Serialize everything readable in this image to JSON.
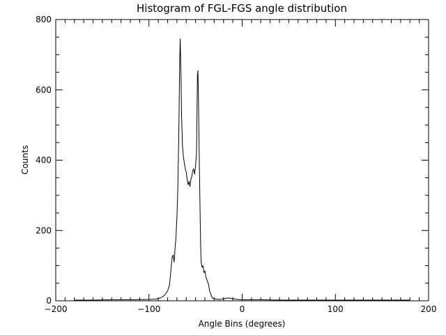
{
  "chart_data": {
    "type": "line",
    "title": "Histogram of FGL-FGS angle distribution",
    "xlabel": "Angle Bins (degrees)",
    "ylabel": "Counts",
    "xlim": [
      -200,
      200
    ],
    "ylim": [
      0,
      800
    ],
    "xticks": [
      -200,
      -100,
      0,
      100,
      200
    ],
    "xtick_labels": [
      "−200",
      "−100",
      "0",
      "100",
      "200"
    ],
    "yticks": [
      0,
      200,
      400,
      600,
      800
    ],
    "ytick_labels": [
      "0",
      "200",
      "400",
      "600",
      "800"
    ],
    "grid": false,
    "series": [
      {
        "color": "#000000",
        "x": [
          -180,
          -160,
          -140,
          -120,
          -100,
          -92,
          -88,
          -84,
          -82,
          -80,
          -78,
          -77,
          -76,
          -75,
          -74,
          -73,
          -72,
          -71,
          -70,
          -69,
          -68,
          -67,
          -66.5,
          -66,
          -65.5,
          -65,
          -64,
          -63,
          -62,
          -61,
          -60,
          -59,
          -58,
          -57,
          -56,
          -55,
          -54,
          -53,
          -52,
          -51,
          -50,
          -49,
          -48.5,
          -48,
          -47.5,
          -47,
          -46.5,
          -46,
          -45.5,
          -45,
          -44.5,
          -44,
          -43,
          -42,
          -41,
          -40,
          -39,
          -38,
          -37,
          -36,
          -35,
          -34,
          -33,
          -32,
          -30,
          -28,
          -26,
          -24,
          -20,
          -15,
          -10,
          -5,
          0,
          20,
          40,
          60,
          80,
          100,
          120,
          140,
          160,
          180
        ],
        "y": [
          2,
          2,
          3,
          3,
          4,
          5,
          8,
          14,
          20,
          28,
          45,
          70,
          100,
          125,
          130,
          110,
          150,
          180,
          240,
          320,
          480,
          690,
          745,
          690,
          620,
          520,
          440,
          410,
          390,
          375,
          365,
          345,
          330,
          340,
          325,
          345,
          355,
          370,
          375,
          360,
          385,
          420,
          520,
          640,
          655,
          600,
          500,
          400,
          320,
          230,
          150,
          110,
          95,
          100,
          80,
          85,
          70,
          60,
          55,
          45,
          28,
          22,
          14,
          8,
          6,
          5,
          4,
          4,
          6,
          8,
          6,
          4,
          3,
          3,
          2,
          2,
          2,
          2,
          2,
          2,
          2,
          2
        ]
      }
    ]
  }
}
